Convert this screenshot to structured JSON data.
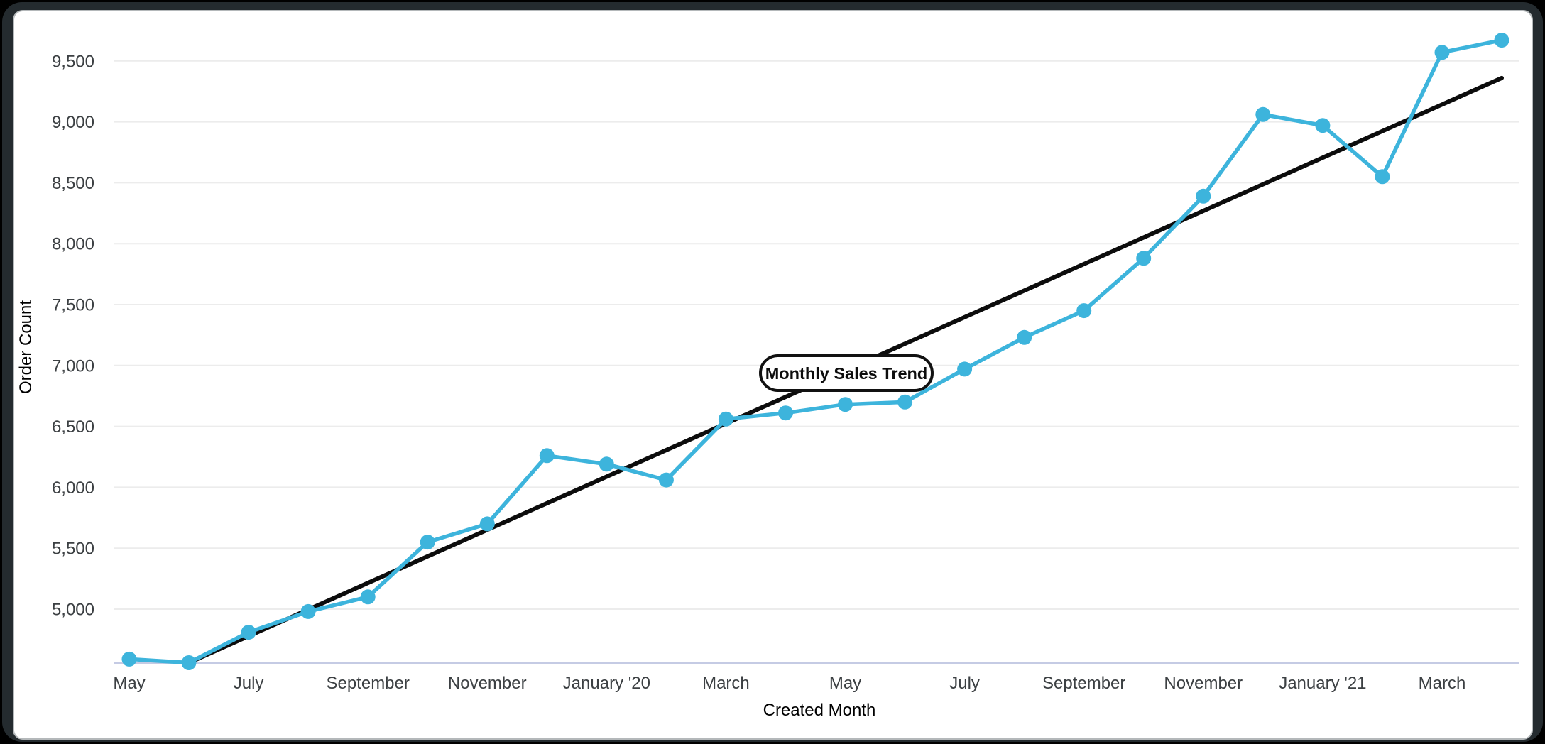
{
  "card": {
    "outer_background": "#000000",
    "frame_color": "#242b2f",
    "background": "#ffffff"
  },
  "chart_data": {
    "type": "line",
    "title": "Monthly Sales Trend",
    "xlabel": "Created Month",
    "ylabel": "Order Count",
    "legend": "none",
    "grid": "horizontal",
    "x": [
      "May 2019",
      "June 2019",
      "July 2019",
      "August 2019",
      "September 2019",
      "October 2019",
      "November 2019",
      "December 2019",
      "January 2020",
      "February 2020",
      "March 2020",
      "April 2020",
      "May 2020",
      "June 2020",
      "July 2020",
      "August 2020",
      "September 2020",
      "October 2020",
      "November 2020",
      "December 2020",
      "January 2021",
      "February 2021",
      "March 2021",
      "April 2021"
    ],
    "series": [
      {
        "name": "Order Count",
        "color": "#3db4dc",
        "values": [
          4590,
          4560,
          4810,
          4980,
          5100,
          5550,
          5700,
          6260,
          6190,
          6060,
          6560,
          6610,
          6680,
          6700,
          6970,
          7230,
          7450,
          7880,
          8390,
          9060,
          8970,
          8550,
          9570,
          9670
        ]
      },
      {
        "name": "Linear trend",
        "color": "#0c0c0c",
        "start": {
          "x_index": 1,
          "value": 4560
        },
        "end": {
          "x_index": 23,
          "value": 9360
        }
      }
    ],
    "x_tick_labels": [
      "May",
      "July",
      "September",
      "November",
      "January '20",
      "March",
      "May",
      "July",
      "September",
      "November",
      "January '21",
      "March"
    ],
    "x_tick_every": 2,
    "y_ticks": [
      5000,
      5500,
      6000,
      6500,
      7000,
      7500,
      8000,
      8500,
      9000,
      9500
    ],
    "ylim": [
      4557,
      9900
    ],
    "colors": {
      "gridline": "#ececec",
      "axis_line": "#c5cbe4",
      "tick_text": "#3c4043",
      "pill_border": "#111111",
      "pill_fill": "#ffffff"
    }
  }
}
